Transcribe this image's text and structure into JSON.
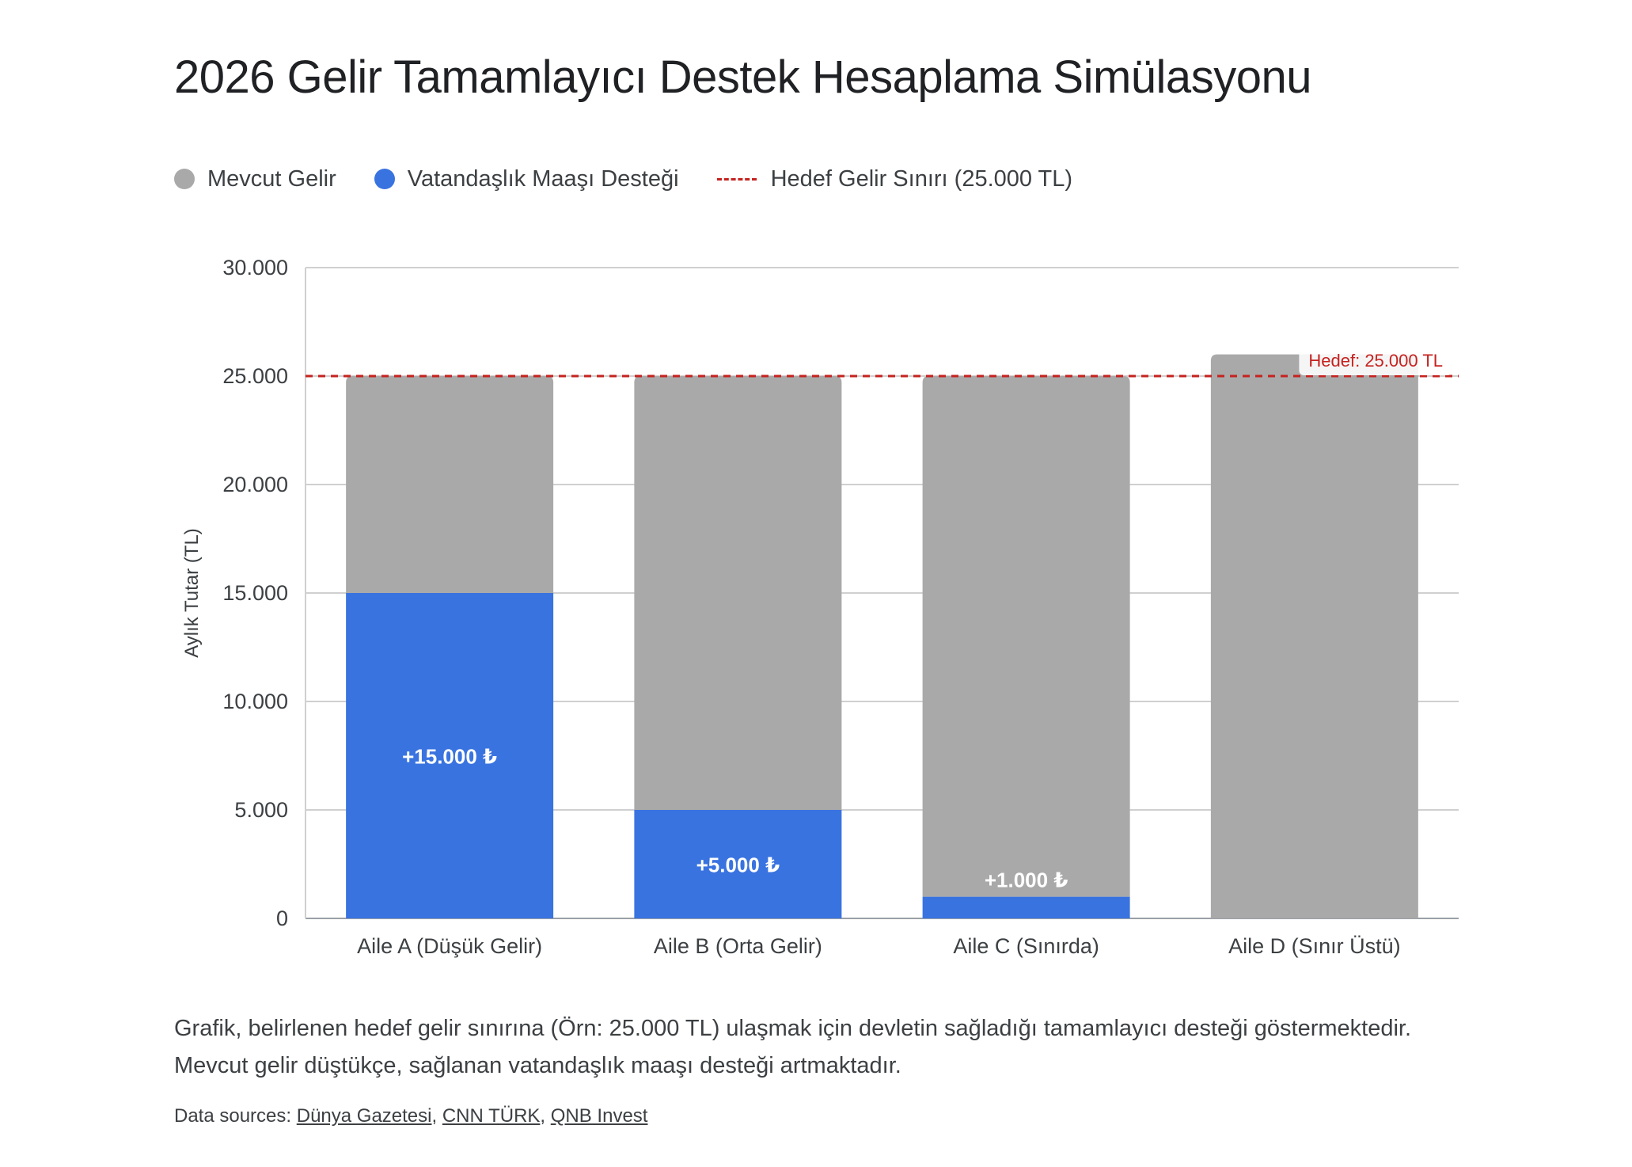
{
  "title": "2026 Gelir Tamamlayıcı Destek Hesaplama Simülasyonu",
  "legend": {
    "items": [
      {
        "label": "Mevcut Gelir",
        "color": "#a9a9a9",
        "shape": "circle"
      },
      {
        "label": "Vatandaşlık Maaşı Desteği",
        "color": "#3973e0",
        "shape": "circle"
      },
      {
        "label": "Hedef Gelir Sınırı (25.000 TL)",
        "color": "#c5221f",
        "shape": "dashed-line"
      }
    ]
  },
  "chart_data": {
    "type": "bar",
    "stacked": true,
    "categories": [
      "Aile A (Düşük Gelir)",
      "Aile B (Orta Gelir)",
      "Aile C (Sınırda)",
      "Aile D (Sınır Üstü)"
    ],
    "series": [
      {
        "name": "Vatandaşlık Maaşı Desteği",
        "values": [
          15000,
          5000,
          1000,
          0
        ],
        "color": "#3973e0"
      },
      {
        "name": "Mevcut Gelir",
        "values": [
          10000,
          20000,
          24000,
          26000
        ],
        "color": "#a9a9a9"
      }
    ],
    "data_labels": [
      "+15.000 ₺",
      "+5.000 ₺",
      "+1.000 ₺",
      ""
    ],
    "ylabel": "Aylık Tutar (TL)",
    "xlabel": "",
    "ylim": [
      0,
      30000
    ],
    "yticks": [
      0,
      5000,
      10000,
      15000,
      20000,
      25000,
      30000
    ],
    "ytick_labels": [
      "0",
      "5.000",
      "10.000",
      "15.000",
      "20.000",
      "25.000",
      "30.000"
    ],
    "grid": true,
    "reference_line": {
      "value": 25000,
      "label": "Hedef: 25.000 TL",
      "color": "#c5221f",
      "style": "dashed"
    }
  },
  "footnote": "Grafik, belirlenen hedef gelir sınırına (Örn: 25.000 TL) ulaşmak için devletin sağladığı tamamlayıcı desteği göstermektedir. Mevcut gelir düştükçe, sağlanan vatandaşlık maaşı desteği artmaktadır.",
  "sources": {
    "prefix": "Data sources: ",
    "links": [
      "Dünya Gazetesi",
      "CNN TÜRK",
      "QNB Invest"
    ]
  }
}
